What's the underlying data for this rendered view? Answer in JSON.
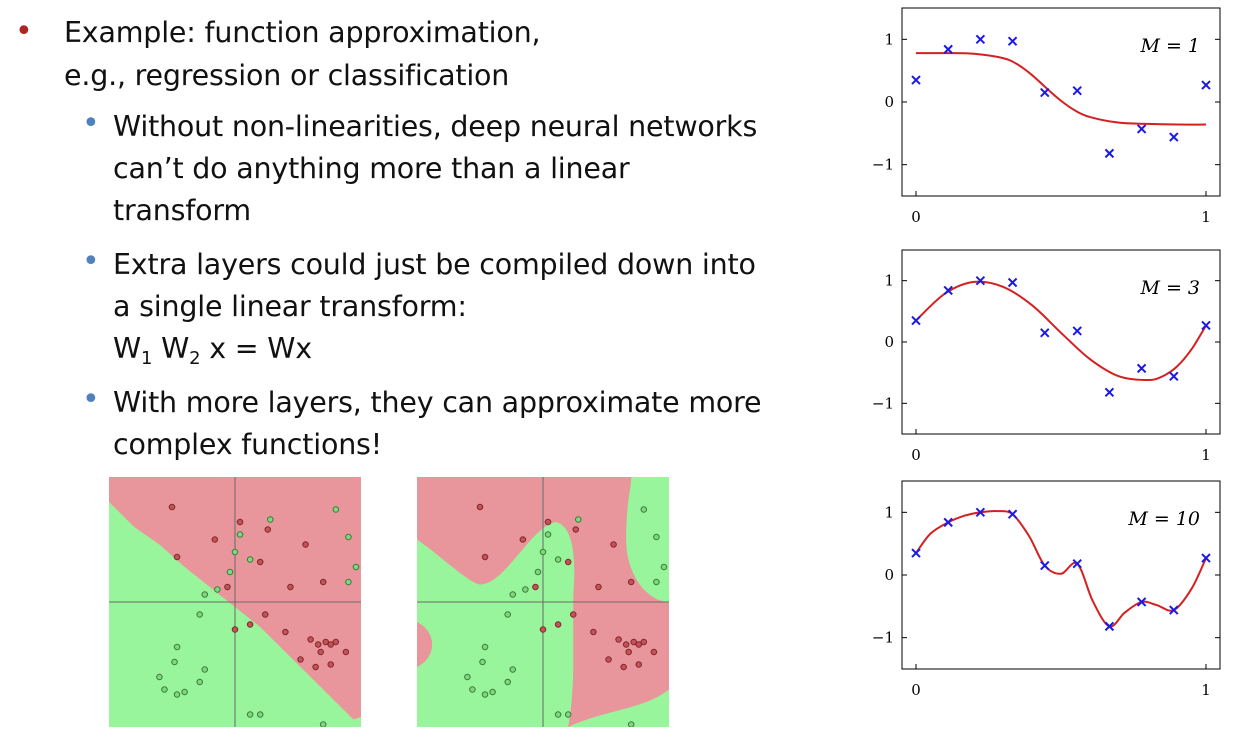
{
  "bullets": {
    "main": {
      "line1": "Example: function approximation,",
      "line2": "e.g., regression or classification"
    },
    "sub1": {
      "line1": "Without non-linearities, deep neural networks",
      "line2": "can’t do anything more than a linear",
      "line3": "transform"
    },
    "sub2": {
      "line1": "Extra layers could just be compiled down into",
      "line2": "a single linear transform:",
      "formula": {
        "w": "W",
        "sub1": "1",
        "w2": "W",
        "sub2": "2",
        "rest": "x = Wx"
      }
    },
    "sub3": {
      "line1": "With more layers, they can approximate more",
      "line2": "complex functions!"
    }
  },
  "colors": {
    "main_bullet": "#b22222",
    "sub_bullet": "#4f81bd",
    "region_red": "#e8969c",
    "region_green": "#99f59c",
    "fit_curve": "#d42020",
    "data_cross": "#1a1ae6"
  },
  "chart_data": [
    {
      "type": "line",
      "label": "M = 1",
      "points": {
        "x": [
          0,
          0.111,
          0.222,
          0.333,
          0.444,
          0.556,
          0.667,
          0.778,
          0.889,
          1.0
        ],
        "y": [
          0.35,
          0.84,
          1.0,
          0.97,
          0.15,
          0.18,
          -0.82,
          -0.43,
          -0.56,
          0.27
        ]
      },
      "fit": {
        "x": [
          0,
          0.1,
          0.2,
          0.3,
          0.35,
          0.4,
          0.45,
          0.5,
          0.55,
          0.6,
          0.7,
          0.8,
          0.9,
          1.0
        ],
        "y": [
          0.78,
          0.78,
          0.77,
          0.7,
          0.6,
          0.43,
          0.22,
          0.02,
          -0.14,
          -0.24,
          -0.33,
          -0.35,
          -0.36,
          -0.36
        ]
      },
      "xticks": [
        "0",
        "1"
      ],
      "yticks": [
        "1",
        "0",
        "−1"
      ],
      "xlim": [
        0,
        1
      ],
      "ylim": [
        -1.5,
        1.5
      ]
    },
    {
      "type": "line",
      "label": "M = 3",
      "points": {
        "x": [
          0,
          0.111,
          0.222,
          0.333,
          0.444,
          0.556,
          0.667,
          0.778,
          0.889,
          1.0
        ],
        "y": [
          0.35,
          0.84,
          1.0,
          0.97,
          0.15,
          0.18,
          -0.82,
          -0.43,
          -0.56,
          0.27
        ]
      },
      "fit": {
        "x": [
          0,
          0.1,
          0.2,
          0.3,
          0.4,
          0.5,
          0.6,
          0.7,
          0.8,
          0.85,
          0.9,
          0.95,
          1.0
        ],
        "y": [
          0.35,
          0.79,
          0.98,
          0.9,
          0.6,
          0.15,
          -0.28,
          -0.56,
          -0.62,
          -0.56,
          -0.4,
          -0.12,
          0.27
        ]
      },
      "xticks": [
        "0",
        "1"
      ],
      "yticks": [
        "1",
        "0",
        "−1"
      ],
      "xlim": [
        0,
        1
      ],
      "ylim": [
        -1.5,
        1.5
      ]
    },
    {
      "type": "line",
      "label": "M = 10",
      "points": {
        "x": [
          0,
          0.111,
          0.222,
          0.333,
          0.444,
          0.556,
          0.667,
          0.778,
          0.889,
          1.0
        ],
        "y": [
          0.35,
          0.84,
          1.0,
          0.97,
          0.15,
          0.18,
          -0.82,
          -0.43,
          -0.56,
          0.27
        ]
      },
      "fit": {
        "x": [
          0,
          0.05,
          0.111,
          0.17,
          0.222,
          0.28,
          0.333,
          0.39,
          0.444,
          0.5,
          0.556,
          0.61,
          0.667,
          0.72,
          0.778,
          0.83,
          0.889,
          0.95,
          1.0
        ],
        "y": [
          0.35,
          0.66,
          0.84,
          0.95,
          1.0,
          1.02,
          0.97,
          0.62,
          0.15,
          0.02,
          0.18,
          -0.42,
          -0.82,
          -0.6,
          -0.43,
          -0.48,
          -0.56,
          -0.22,
          0.27
        ]
      },
      "xticks": [
        "0",
        "1"
      ],
      "yticks": [
        "1",
        "0",
        "−1"
      ],
      "xlim": [
        0,
        1
      ],
      "ylim": [
        -1.5,
        1.5
      ]
    }
  ],
  "boundaries": {
    "red_points": [
      [
        0.25,
        0.12
      ],
      [
        0.42,
        0.25
      ],
      [
        0.52,
        0.18
      ],
      [
        0.27,
        0.32
      ],
      [
        0.63,
        0.21
      ],
      [
        0.6,
        0.34
      ],
      [
        0.78,
        0.27
      ],
      [
        0.85,
        0.42
      ],
      [
        0.72,
        0.44
      ],
      [
        0.47,
        0.44
      ],
      [
        0.62,
        0.55
      ],
      [
        0.7,
        0.62
      ],
      [
        0.8,
        0.65
      ],
      [
        0.83,
        0.67
      ],
      [
        0.86,
        0.66
      ],
      [
        0.88,
        0.67
      ],
      [
        0.9,
        0.66
      ],
      [
        0.84,
        0.7
      ],
      [
        0.76,
        0.73
      ],
      [
        0.82,
        0.76
      ],
      [
        0.88,
        0.75
      ],
      [
        0.94,
        0.7
      ],
      [
        0.5,
        0.61
      ],
      [
        0.56,
        0.59
      ]
    ],
    "green_points": [
      [
        0.9,
        0.13
      ],
      [
        0.64,
        0.17
      ],
      [
        0.52,
        0.23
      ],
      [
        0.5,
        0.3
      ],
      [
        0.95,
        0.24
      ],
      [
        0.56,
        0.33
      ],
      [
        0.48,
        0.38
      ],
      [
        0.98,
        0.36
      ],
      [
        0.95,
        0.42
      ],
      [
        0.43,
        0.45
      ],
      [
        0.38,
        0.47
      ],
      [
        0.36,
        0.55
      ],
      [
        0.26,
        0.74
      ],
      [
        0.2,
        0.8
      ],
      [
        0.22,
        0.85
      ],
      [
        0.27,
        0.87
      ],
      [
        0.3,
        0.86
      ],
      [
        0.36,
        0.82
      ],
      [
        0.38,
        0.77
      ],
      [
        0.27,
        0.68
      ],
      [
        0.56,
        0.95
      ],
      [
        0.6,
        0.95
      ],
      [
        0.85,
        0.99
      ]
    ]
  }
}
